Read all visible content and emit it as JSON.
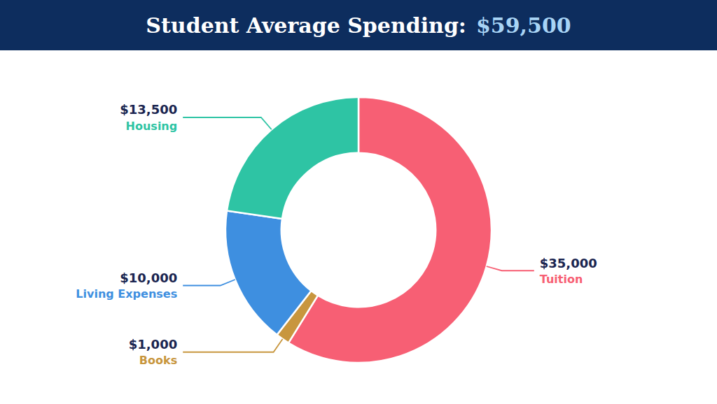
{
  "chart_data": {
    "type": "donut",
    "title": "Student Average Spending:",
    "subtitle": "$59,500",
    "categories": [
      "Tuition",
      "Books",
      "Living Expenses",
      "Housing"
    ],
    "values": [
      35000,
      1000,
      10000,
      13500
    ],
    "value_labels": [
      "$35,000",
      "$1,000",
      "$10,000",
      "$13,500"
    ],
    "colors": [
      "#f75f74",
      "#c8963e",
      "#3e8fe0",
      "#2ec4a4"
    ],
    "data_labels": true
  }
}
